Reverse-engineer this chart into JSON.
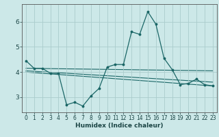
{
  "xlabel": "Humidex (Indice chaleur)",
  "background_color": "#cce8e8",
  "grid_color": "#aacccc",
  "line_color": "#1a6666",
  "xlim": [
    -0.5,
    23.5
  ],
  "ylim": [
    2.4,
    6.7
  ],
  "yticks": [
    3,
    4,
    5,
    6
  ],
  "xticks": [
    0,
    1,
    2,
    3,
    4,
    5,
    6,
    7,
    8,
    9,
    10,
    11,
    12,
    13,
    14,
    15,
    16,
    17,
    18,
    19,
    20,
    21,
    22,
    23
  ],
  "main_line_x": [
    0,
    1,
    2,
    3,
    4,
    5,
    6,
    7,
    8,
    9,
    10,
    11,
    12,
    13,
    14,
    15,
    16,
    17,
    18,
    19,
    20,
    21,
    22,
    23
  ],
  "main_line_y": [
    4.45,
    4.15,
    4.15,
    3.95,
    3.95,
    2.7,
    2.8,
    2.65,
    3.05,
    3.35,
    4.2,
    4.3,
    4.3,
    5.6,
    5.5,
    6.4,
    5.9,
    4.55,
    4.1,
    3.5,
    3.55,
    3.72,
    3.5,
    3.45
  ],
  "trend1_x": [
    0,
    23
  ],
  "trend1_y": [
    4.15,
    4.05
  ],
  "trend2_x": [
    0,
    23
  ],
  "trend2_y": [
    4.05,
    3.6
  ],
  "trend3_x": [
    0,
    23
  ],
  "trend3_y": [
    4.0,
    3.45
  ]
}
